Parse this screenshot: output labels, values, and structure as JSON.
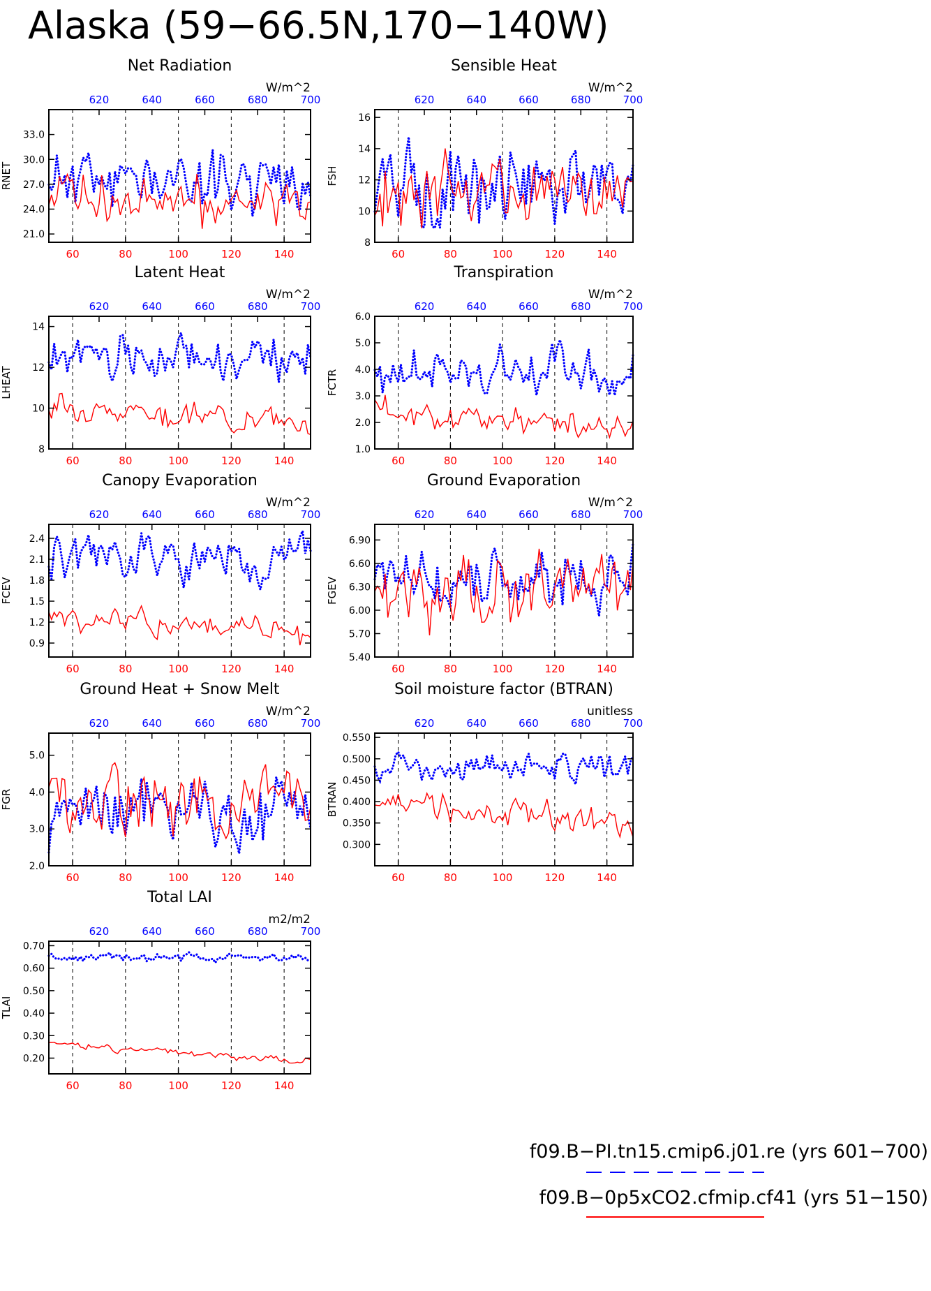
{
  "page": {
    "title": "Alaska (59−66.5N,170−140W)"
  },
  "legend": {
    "entries": [
      {
        "label": "f09.B−PI.tn15.cmip6.j01.re (yrs 601−700)",
        "color": "#0000ff",
        "style": "dashed"
      },
      {
        "label": "f09.B−0p5xCO2.cfmip.cf41 (yrs 51−150)",
        "color": "#ff0000",
        "style": "solid"
      }
    ]
  },
  "colors": {
    "blue": "#0000ff",
    "red": "#ff0000",
    "axis": "#000000"
  },
  "chart_data": [
    {
      "type": "line",
      "title": "Net Radiation",
      "ylabel": "RNET",
      "units": "W/m^2",
      "ylim": [
        20,
        36
      ],
      "yticks": [
        21.0,
        24.0,
        27.0,
        30.0,
        33.0
      ],
      "ytick_fmt": 1,
      "x_bottom": {
        "lim": [
          51,
          150
        ],
        "ticks": [
          60,
          80,
          100,
          120,
          140
        ],
        "color": "#ff0000"
      },
      "x_top": {
        "lim": [
          601,
          700
        ],
        "ticks": [
          620,
          640,
          660,
          680,
          700
        ],
        "color": "#0000ff"
      },
      "grid": "dashed vertical at 60,80,100,120,140",
      "series": [
        {
          "period": "yrs 601-700",
          "color": "#0000ff",
          "dotted": true,
          "seed": 11,
          "mean": 27.6,
          "amp": 2.1,
          "trend": 0
        },
        {
          "period": "yrs 51-150",
          "color": "#ff0000",
          "dotted": false,
          "seed": 12,
          "mean": 25.2,
          "amp": 1.8,
          "trend": -0.5
        }
      ]
    },
    {
      "type": "line",
      "title": "Sensible Heat",
      "ylabel": "FSH",
      "units": "W/m^2",
      "ylim": [
        8,
        16.5
      ],
      "yticks": [
        8,
        10,
        12,
        14,
        16
      ],
      "ytick_fmt": 0,
      "x_bottom": {
        "lim": [
          51,
          150
        ],
        "ticks": [
          60,
          80,
          100,
          120,
          140
        ],
        "color": "#ff0000"
      },
      "x_top": {
        "lim": [
          601,
          700
        ],
        "ticks": [
          620,
          640,
          660,
          680,
          700
        ],
        "color": "#0000ff"
      },
      "grid": "dashed vertical at 60,80,100,120,140",
      "series": [
        {
          "period": "yrs 601-700",
          "color": "#0000ff",
          "dotted": true,
          "seed": 21,
          "mean": 11.6,
          "amp": 1.4,
          "trend": 0
        },
        {
          "period": "yrs 51-150",
          "color": "#ff0000",
          "dotted": false,
          "seed": 22,
          "mean": 11.4,
          "amp": 1.2,
          "trend": 0
        }
      ]
    },
    {
      "type": "line",
      "title": "Latent Heat",
      "ylabel": "LHEAT",
      "units": "W/m^2",
      "ylim": [
        8,
        14.5
      ],
      "yticks": [
        8,
        10,
        12,
        14
      ],
      "ytick_fmt": 0,
      "x_bottom": {
        "lim": [
          51,
          150
        ],
        "ticks": [
          60,
          80,
          100,
          120,
          140
        ],
        "color": "#ff0000"
      },
      "x_top": {
        "lim": [
          601,
          700
        ],
        "ticks": [
          620,
          640,
          660,
          680,
          700
        ],
        "color": "#0000ff"
      },
      "grid": "dashed vertical at 60,80,100,120,140",
      "series": [
        {
          "period": "yrs 601-700",
          "color": "#0000ff",
          "dotted": true,
          "seed": 31,
          "mean": 12.5,
          "amp": 0.6,
          "trend": 0
        },
        {
          "period": "yrs 51-150",
          "color": "#ff0000",
          "dotted": false,
          "seed": 32,
          "mean": 9.7,
          "amp": 0.35,
          "trend": -0.9
        }
      ]
    },
    {
      "type": "line",
      "title": "Transpiration",
      "ylabel": "FCTR",
      "units": "W/m^2",
      "ylim": [
        1.0,
        6.0
      ],
      "yticks": [
        1.0,
        2.0,
        3.0,
        4.0,
        5.0,
        6.0
      ],
      "ytick_fmt": 1,
      "x_bottom": {
        "lim": [
          51,
          150
        ],
        "ticks": [
          60,
          80,
          100,
          120,
          140
        ],
        "color": "#ff0000"
      },
      "x_top": {
        "lim": [
          601,
          700
        ],
        "ticks": [
          620,
          640,
          660,
          680,
          700
        ],
        "color": "#0000ff"
      },
      "grid": "dashed vertical at 60,80,100,120,140",
      "series": [
        {
          "period": "yrs 601-700",
          "color": "#0000ff",
          "dotted": true,
          "seed": 41,
          "mean": 3.8,
          "amp": 0.55,
          "trend": 0
        },
        {
          "period": "yrs 51-150",
          "color": "#ff0000",
          "dotted": false,
          "seed": 42,
          "mean": 2.1,
          "amp": 0.3,
          "trend": -0.5
        }
      ]
    },
    {
      "type": "line",
      "title": "Canopy Evaporation",
      "ylabel": "FCEV",
      "units": "W/m^2",
      "ylim": [
        0.7,
        2.6
      ],
      "yticks": [
        0.9,
        1.2,
        1.5,
        1.8,
        2.1,
        2.4
      ],
      "ytick_fmt": 1,
      "x_bottom": {
        "lim": [
          51,
          150
        ],
        "ticks": [
          60,
          80,
          100,
          120,
          140
        ],
        "color": "#ff0000"
      },
      "x_top": {
        "lim": [
          601,
          700
        ],
        "ticks": [
          620,
          640,
          660,
          680,
          700
        ],
        "color": "#0000ff"
      },
      "grid": "dashed vertical at 60,80,100,120,140",
      "series": [
        {
          "period": "yrs 601-700",
          "color": "#0000ff",
          "dotted": true,
          "seed": 51,
          "mean": 2.1,
          "amp": 0.2,
          "trend": 0
        },
        {
          "period": "yrs 51-150",
          "color": "#ff0000",
          "dotted": false,
          "seed": 52,
          "mean": 1.15,
          "amp": 0.12,
          "trend": -0.2
        }
      ]
    },
    {
      "type": "line",
      "title": "Ground Evaporation",
      "ylabel": "FGEV",
      "units": "W/m^2",
      "ylim": [
        5.4,
        7.1
      ],
      "yticks": [
        5.4,
        5.7,
        6.0,
        6.3,
        6.6,
        6.9
      ],
      "ytick_fmt": 2,
      "x_bottom": {
        "lim": [
          51,
          150
        ],
        "ticks": [
          60,
          80,
          100,
          120,
          140
        ],
        "color": "#ff0000"
      },
      "x_top": {
        "lim": [
          601,
          700
        ],
        "ticks": [
          620,
          640,
          660,
          680,
          700
        ],
        "color": "#0000ff"
      },
      "grid": "dashed vertical at 60,80,100,120,140",
      "series": [
        {
          "period": "yrs 601-700",
          "color": "#0000ff",
          "dotted": true,
          "seed": 61,
          "mean": 6.35,
          "amp": 0.22,
          "trend": 0
        },
        {
          "period": "yrs 51-150",
          "color": "#ff0000",
          "dotted": false,
          "seed": 62,
          "mean": 6.25,
          "amp": 0.25,
          "trend": 0
        }
      ]
    },
    {
      "type": "line",
      "title": "Ground Heat + Snow Melt",
      "ylabel": "FGR",
      "units": "W/m^2",
      "ylim": [
        2.0,
        5.6
      ],
      "yticks": [
        2.0,
        3.0,
        4.0,
        5.0
      ],
      "ytick_fmt": 1,
      "x_bottom": {
        "lim": [
          51,
          150
        ],
        "ticks": [
          60,
          80,
          100,
          120,
          140
        ],
        "color": "#ff0000"
      },
      "x_top": {
        "lim": [
          601,
          700
        ],
        "ticks": [
          620,
          640,
          660,
          680,
          700
        ],
        "color": "#0000ff"
      },
      "grid": "dashed vertical at 60,80,100,120,140",
      "series": [
        {
          "period": "yrs 601-700",
          "color": "#0000ff",
          "dotted": true,
          "seed": 71,
          "mean": 3.6,
          "amp": 0.55,
          "trend": 0
        },
        {
          "period": "yrs 51-150",
          "color": "#ff0000",
          "dotted": false,
          "seed": 72,
          "mean": 3.7,
          "amp": 0.6,
          "trend": 0
        }
      ]
    },
    {
      "type": "line",
      "title": "Soil moisture factor (BTRAN)",
      "ylabel": "BTRAN",
      "units": "unitless",
      "ylim": [
        0.25,
        0.56
      ],
      "yticks": [
        0.3,
        0.35,
        0.4,
        0.45,
        0.5,
        0.55
      ],
      "ytick_fmt": 3,
      "x_bottom": {
        "lim": [
          51,
          150
        ],
        "ticks": [
          60,
          80,
          100,
          120,
          140
        ],
        "color": "#ff0000"
      },
      "x_top": {
        "lim": [
          601,
          700
        ],
        "ticks": [
          620,
          640,
          660,
          680,
          700
        ],
        "color": "#0000ff"
      },
      "grid": "dashed vertical at 60,80,100,120,140",
      "series": [
        {
          "period": "yrs 601-700",
          "color": "#0000ff",
          "dotted": true,
          "seed": 81,
          "mean": 0.48,
          "amp": 0.022,
          "trend": 0
        },
        {
          "period": "yrs 51-150",
          "color": "#ff0000",
          "dotted": false,
          "seed": 82,
          "mean": 0.37,
          "amp": 0.02,
          "trend": -0.05
        }
      ]
    },
    {
      "type": "line",
      "title": "Total LAI",
      "ylabel": "TLAI",
      "units": "m2/m2",
      "ylim": [
        0.13,
        0.72
      ],
      "yticks": [
        0.2,
        0.3,
        0.4,
        0.5,
        0.6,
        0.7
      ],
      "ytick_fmt": 2,
      "x_bottom": {
        "lim": [
          51,
          150
        ],
        "ticks": [
          60,
          80,
          100,
          120,
          140
        ],
        "color": "#ff0000"
      },
      "x_top": {
        "lim": [
          601,
          700
        ],
        "ticks": [
          620,
          640,
          660,
          680,
          700
        ],
        "color": "#0000ff"
      },
      "grid": "dashed vertical at 60,80,100,120,140",
      "series": [
        {
          "period": "yrs 601-700",
          "color": "#0000ff",
          "dotted": true,
          "seed": 91,
          "mean": 0.645,
          "amp": 0.012,
          "trend": 0
        },
        {
          "period": "yrs 51-150",
          "color": "#ff0000",
          "dotted": false,
          "seed": 92,
          "mean": 0.225,
          "amp": 0.008,
          "trend": -0.08
        }
      ]
    }
  ]
}
